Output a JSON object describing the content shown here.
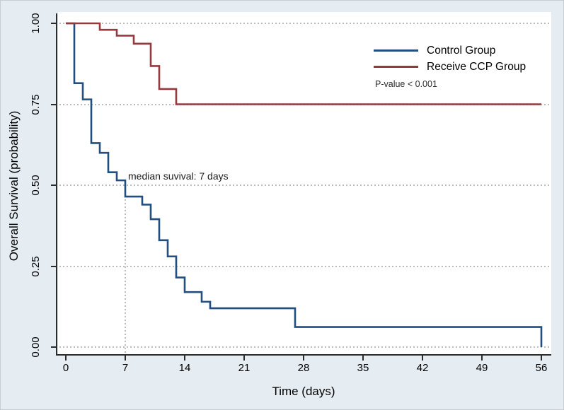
{
  "figure": {
    "background_color": "#e5ecf2",
    "plot_background_color": "#ffffff",
    "gridline_color": "#bcbcbc",
    "axis_color": "#2b2b2b"
  },
  "chart_data": {
    "type": "line",
    "subtype": "kaplan-meier-step",
    "title": "",
    "xlabel": "Time (days)",
    "ylabel": "Overall Survival (probability)",
    "xlim": [
      0,
      56
    ],
    "ylim": [
      0.0,
      1.0
    ],
    "x_ticks": [
      0,
      7,
      14,
      21,
      28,
      35,
      42,
      49,
      56
    ],
    "y_ticks": [
      {
        "prob": 0.0,
        "label": "0.00"
      },
      {
        "prob": 0.25,
        "label": "0.25"
      },
      {
        "prob": 0.5,
        "label": "0.50"
      },
      {
        "prob": 0.75,
        "label": "0.75"
      },
      {
        "prob": 1.0,
        "label": "1.00"
      }
    ],
    "grid": "horizontal-dotted",
    "legend_position": "top-right-inside",
    "series": [
      {
        "name": "Control Group",
        "color": "#234e7d",
        "end_day": 56,
        "steps": [
          [
            0,
            1.0
          ],
          [
            1,
            0.815
          ],
          [
            2,
            0.765
          ],
          [
            3,
            0.63
          ],
          [
            4,
            0.6
          ],
          [
            5,
            0.54
          ],
          [
            6,
            0.515
          ],
          [
            7,
            0.465
          ],
          [
            9,
            0.44
          ],
          [
            10,
            0.395
          ],
          [
            11,
            0.33
          ],
          [
            12,
            0.28
          ],
          [
            13,
            0.215
          ],
          [
            14,
            0.17
          ],
          [
            16,
            0.14
          ],
          [
            17,
            0.12
          ],
          [
            27,
            0.062
          ],
          [
            56,
            0.0
          ]
        ]
      },
      {
        "name": "Receive CCP Group",
        "color": "#943a3e",
        "end_day": 56,
        "steps": [
          [
            0,
            1.0
          ],
          [
            4,
            0.98
          ],
          [
            6,
            0.962
          ],
          [
            8,
            0.937
          ],
          [
            10,
            0.868
          ],
          [
            11,
            0.797
          ],
          [
            13,
            0.75
          ]
        ]
      }
    ],
    "median_line": {
      "x_day": 7,
      "from_prob": 0.5,
      "to_prob": 0.0
    }
  },
  "legend": {
    "items": [
      {
        "label": "Control Group",
        "color": "#234e7d"
      },
      {
        "label": "Receive CCP Group",
        "color": "#943a3e"
      }
    ],
    "pvalue_text": "P-value < 0.001"
  },
  "annotations": {
    "median_survival": "median suvival: 7 days"
  }
}
